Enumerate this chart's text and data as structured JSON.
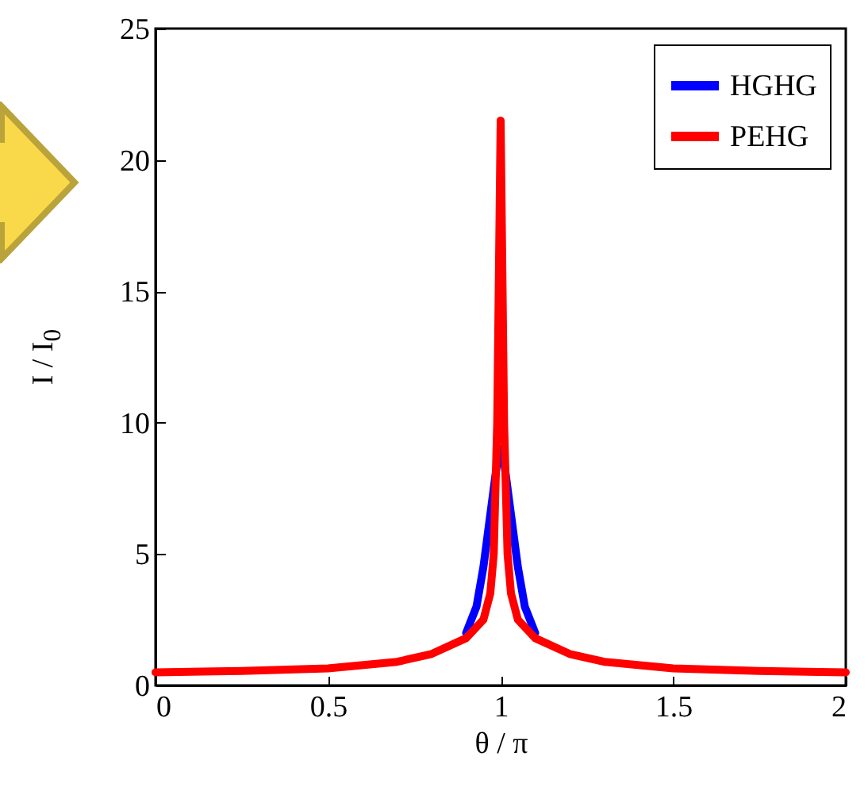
{
  "chart_data": {
    "type": "line",
    "xlabel": "θ / π",
    "ylabel": "I / I$_{0}$",
    "xlim": [
      0,
      2
    ],
    "ylim": [
      0,
      25
    ],
    "xticks": [
      0,
      0.5,
      1,
      1.5,
      2
    ],
    "yticks": [
      0,
      5,
      10,
      15,
      20,
      25
    ],
    "grid": false,
    "legend": "top right",
    "line_style": "solid",
    "marker": "none",
    "series": [
      {
        "name": "HGHG",
        "color": "#0000ff",
        "x": [
          0.9,
          0.93,
          0.95,
          0.97,
          0.99,
          1,
          1.01,
          1.03,
          1.05,
          1.07,
          1.1
        ],
        "values": [
          2,
          3,
          4.5,
          6.5,
          8.5,
          9,
          8.5,
          6.5,
          4.5,
          3,
          2
        ]
      },
      {
        "name": "PEHG",
        "color": "#ff0000",
        "x": [
          0,
          0.25,
          0.5,
          0.7,
          0.8,
          0.9,
          0.95,
          0.97,
          0.98,
          0.99,
          1,
          1.01,
          1.02,
          1.03,
          1.05,
          1.1,
          1.2,
          1.3,
          1.5,
          1.75,
          2
        ],
        "values": [
          0.5,
          0.55,
          0.65,
          0.9,
          1.2,
          1.8,
          2.5,
          3.5,
          5,
          10,
          21.5,
          10,
          5,
          3.5,
          2.5,
          1.8,
          1.2,
          0.9,
          0.65,
          0.55,
          0.5
        ]
      }
    ]
  }
}
